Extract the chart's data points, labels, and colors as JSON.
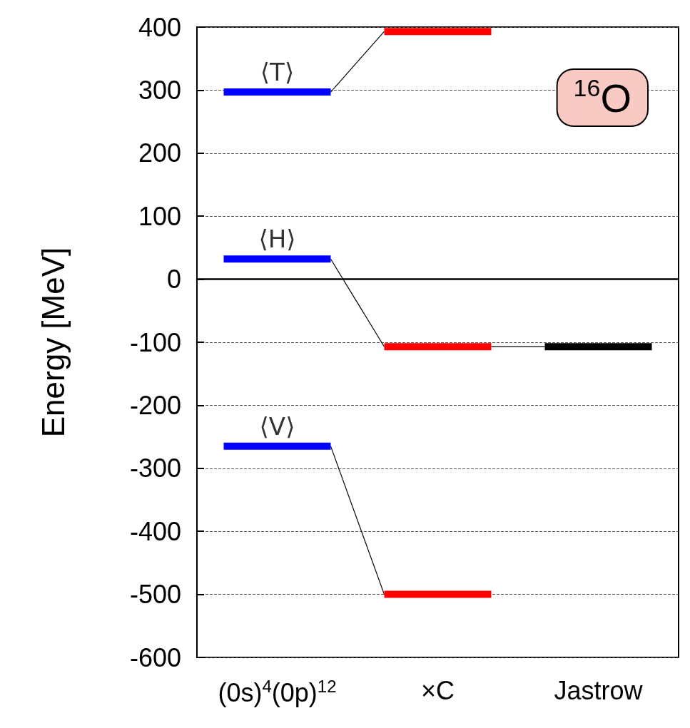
{
  "chart_data": {
    "type": "line",
    "ylabel": "Energy [MeV]",
    "categories": [
      null,
      "(0s)$^{4}$(0p)$^{12}$",
      null,
      null,
      "×C",
      null,
      null,
      "Jastrow",
      null
    ],
    "series": [
      {
        "color": "#0000ff",
        "values": [
          297,
          297,
          297,
          null,
          null,
          null,
          null,
          null,
          null
        ]
      },
      {
        "color": "#ff0000",
        "values": [
          null,
          null,
          null,
          393,
          393,
          393,
          null,
          null,
          null
        ]
      },
      {
        "color": "#0000ff",
        "values": [
          32,
          32,
          32,
          null,
          null,
          null,
          null,
          null,
          null
        ]
      },
      {
        "color": "#ff0000",
        "values": [
          null,
          null,
          null,
          -107,
          -107,
          -107,
          null,
          null,
          null
        ]
      },
      {
        "color": "#000000",
        "values": [
          null,
          null,
          null,
          null,
          null,
          null,
          -107,
          -107,
          -107
        ]
      },
      {
        "color": "#0000ff",
        "values": [
          -265,
          -265,
          -265,
          null,
          null,
          null,
          null,
          null,
          null
        ]
      },
      {
        "color": "#ff0000",
        "values": [
          null,
          null,
          null,
          -500,
          -500,
          -500,
          null,
          null,
          null
        ]
      },
      {
        "color": "#000000",
        "values": [
          null,
          null,
          297,
          393,
          null,
          null,
          null,
          null,
          null
        ]
      },
      {
        "color": "#000000",
        "values": [
          null,
          null,
          32,
          -107,
          null,
          null,
          null,
          null,
          null
        ]
      },
      {
        "color": "#000000",
        "values": [
          null,
          null,
          null,
          null,
          null,
          -107,
          -107,
          null,
          null
        ]
      },
      {
        "color": "#000000",
        "values": [
          null,
          null,
          -265,
          -500,
          null,
          null,
          null,
          null,
          null
        ]
      }
    ],
    "ylim": [
      -600,
      400
    ],
    "yticks": [
      -600,
      -500,
      -400,
      -300,
      -200,
      -100,
      0,
      100,
      200,
      300,
      400
    ],
    "grid": "y",
    "ref_lines": [
      {
        "axis": "y",
        "value": 0,
        "color": "#000000"
      }
    ],
    "annotations": [
      {
        "text": "⟨T⟩",
        "x": "(0s)$^{4}$(0p)$^{12}$",
        "y": 297
      },
      {
        "text": "⟨H⟩",
        "x": "(0s)$^{4}$(0p)$^{12}$",
        "y": 32
      },
      {
        "text": "⟨V⟩",
        "x": "(0s)$^{4}$(0p)$^{12}$",
        "y": -265
      },
      "$^{16}$O"
    ]
  }
}
